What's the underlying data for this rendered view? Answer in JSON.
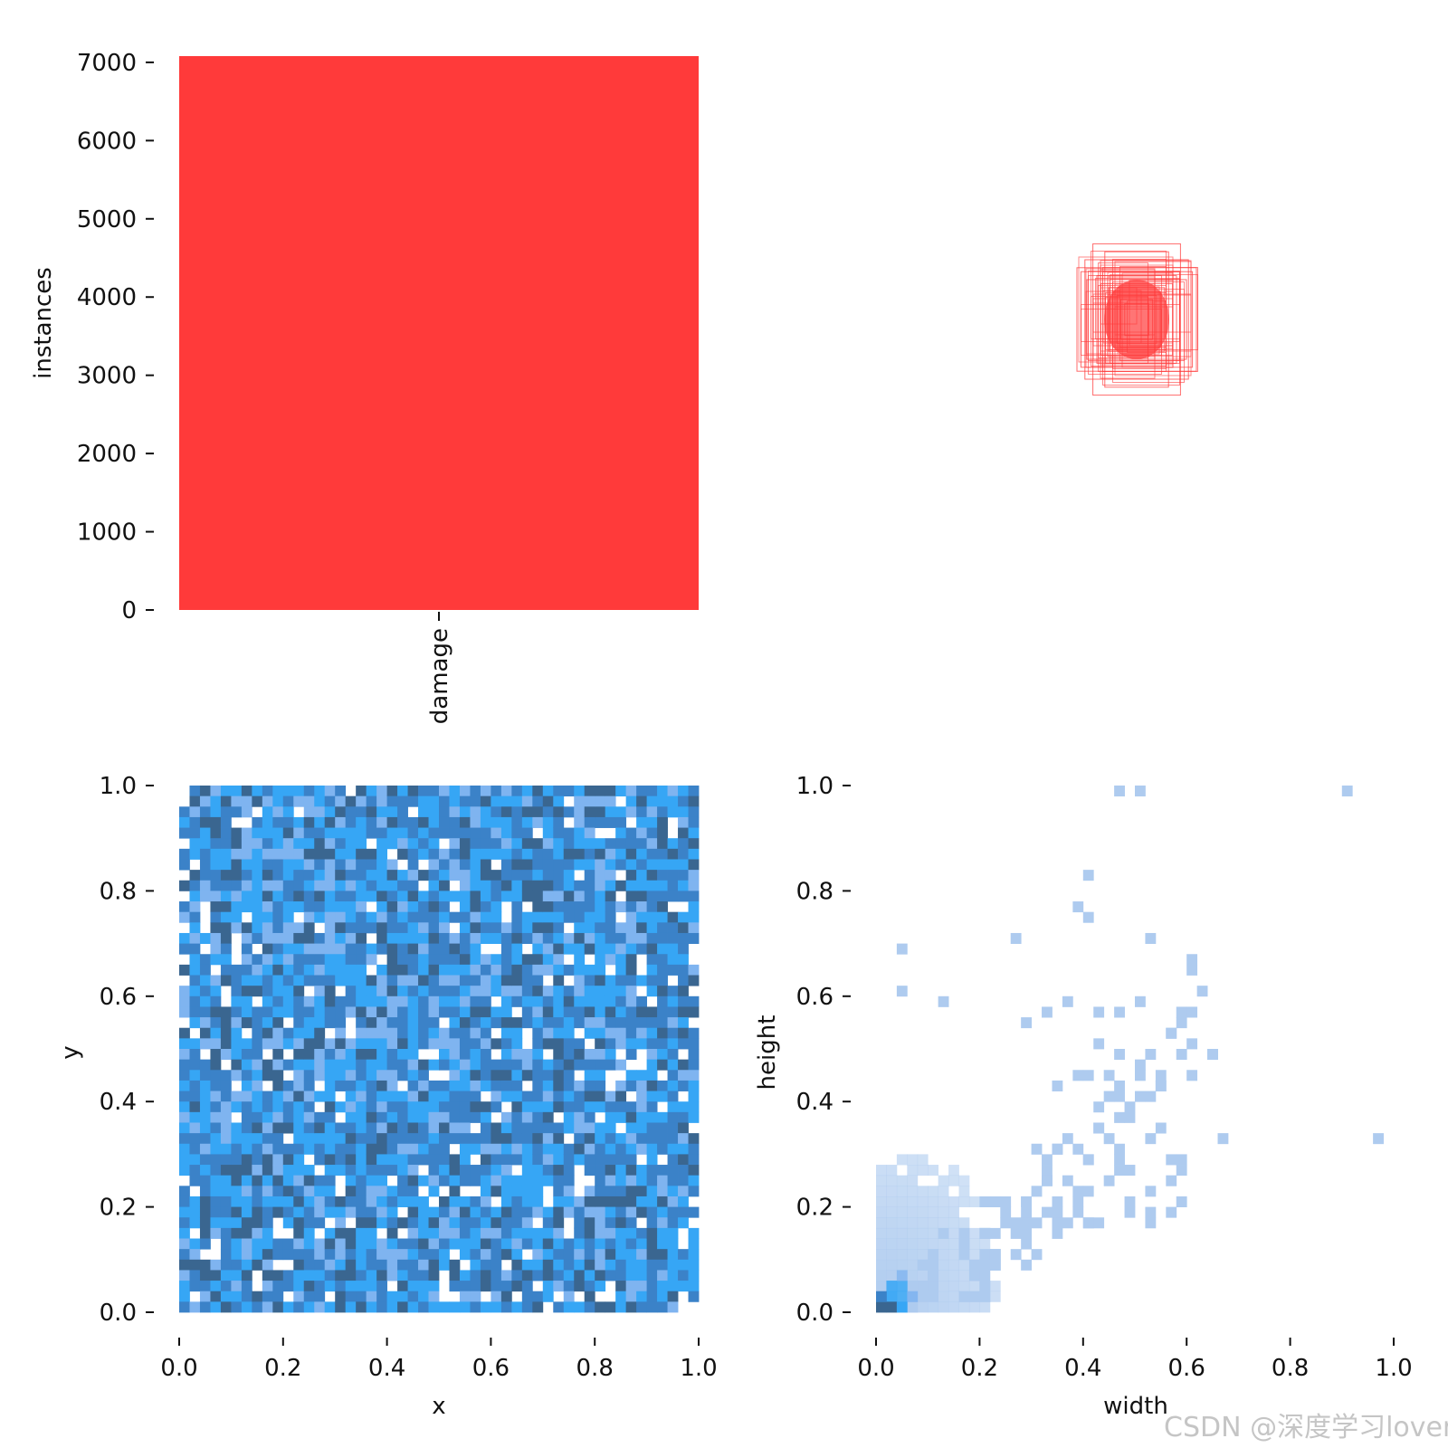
{
  "watermark": "CSDN @深度学习lover",
  "colors": {
    "bar": "#ff3a3a",
    "box_outline": "#ff3a3a",
    "hist_dark": "#3a6690",
    "hist_mid": "#3b82c8",
    "hist_bright": "#36a6f5",
    "hist_light": "#7fb4f0",
    "hist_pale": "#aecbef"
  },
  "chart_data": [
    {
      "type": "bar",
      "categories": [
        "damage"
      ],
      "values": [
        7080
      ],
      "ylabel": "instances",
      "xlabel": "",
      "ylim": [
        0,
        7080
      ],
      "yticks": [
        "0",
        "1000",
        "2000",
        "3000",
        "4000",
        "5000",
        "6000",
        "7000"
      ],
      "grid": false
    },
    {
      "type": "scatter",
      "description_kind": "overlaid bounding boxes (label outlines)",
      "x_center": 0.5,
      "y_center": 0.5,
      "box_widths": [
        0.3,
        0.28,
        0.26,
        0.25,
        0.22,
        0.2,
        0.18,
        0.16,
        0.14,
        0.12,
        0.1,
        0.08,
        0.06
      ],
      "box_heights": [
        0.26,
        0.24,
        0.3,
        0.2,
        0.38,
        0.22,
        0.18,
        0.34,
        0.16,
        0.14,
        0.12,
        0.1,
        0.08
      ],
      "axes_visible": false
    },
    {
      "type": "heatmap",
      "xlabel": "x",
      "ylabel": "y",
      "xlim": [
        0,
        1
      ],
      "ylim": [
        0,
        1
      ],
      "xticks": [
        "0.0",
        "0.2",
        "0.4",
        "0.6",
        "0.8",
        "1.0"
      ],
      "yticks": [
        "0.0",
        "0.2",
        "0.4",
        "0.6",
        "0.8",
        "1.0"
      ],
      "bins": 50,
      "distribution": "approximately uniform"
    },
    {
      "type": "heatmap",
      "xlabel": "width",
      "ylabel": "height",
      "xlim": [
        0,
        1
      ],
      "ylim": [
        0,
        1
      ],
      "xticks": [
        "0.0",
        "0.2",
        "0.4",
        "0.6",
        "0.8",
        "1.0"
      ],
      "yticks": [
        "0.0",
        "0.2",
        "0.4",
        "0.6",
        "0.8",
        "1.0"
      ],
      "bins": 50,
      "distribution": "concentrated near origin, densest at width≈0.02, height≈0.03, sparse cells extending toward (1,1)"
    }
  ]
}
